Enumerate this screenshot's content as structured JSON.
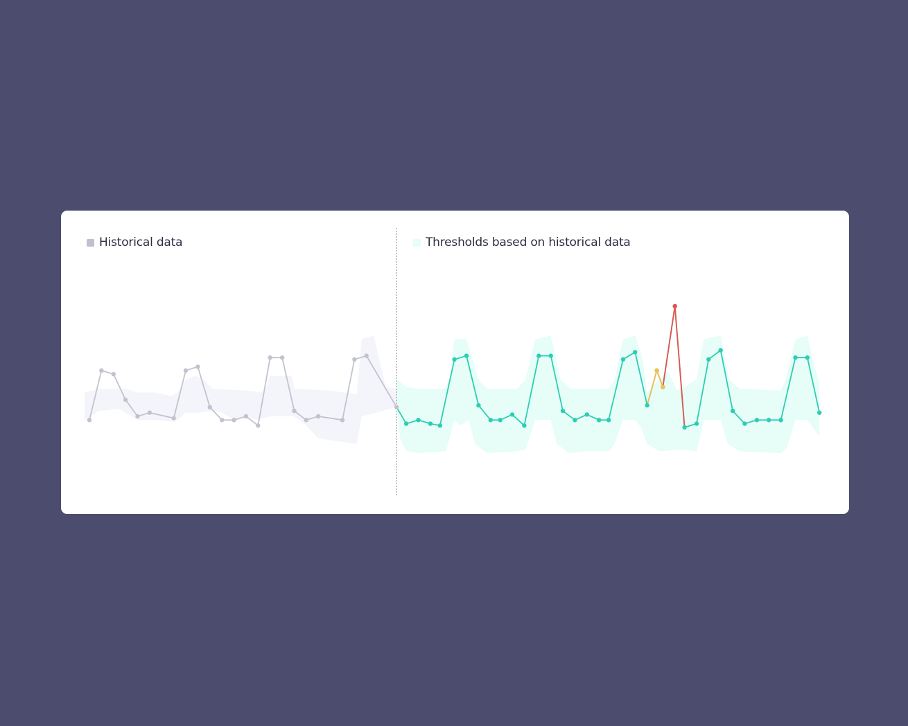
{
  "colors": {
    "background": "#4b4c6e",
    "card": "#ffffff",
    "historical_line": "#c2c3cf",
    "historical_band": "#f4f4fb",
    "current_line": "#2ecdb3",
    "current_band": "#e6fdf8",
    "warning": "#f5c04a",
    "alert": "#e4544c",
    "divider": "#8d8d8d",
    "legend_text": "#2b2d42"
  },
  "legend": {
    "historical_label": "Historical data",
    "thresholds_label": "Thresholds based on historical data"
  },
  "chart_data": {
    "type": "line",
    "title": "",
    "xlabel": "",
    "ylabel": "",
    "ylim": [
      0,
      100
    ],
    "grid": false,
    "legend_position": "top-left",
    "divider_x": 25.5,
    "series": [
      {
        "name": "Historical data",
        "role": "historical",
        "points": [
          [
            0,
            18
          ],
          [
            1,
            45
          ],
          [
            2,
            43
          ],
          [
            3,
            29
          ],
          [
            4,
            20
          ],
          [
            5,
            22
          ],
          [
            7,
            19
          ],
          [
            8,
            45
          ],
          [
            9,
            47
          ],
          [
            10,
            25
          ],
          [
            11,
            18
          ],
          [
            12,
            18
          ],
          [
            13,
            20
          ],
          [
            14,
            15
          ],
          [
            15,
            52
          ],
          [
            16,
            52
          ],
          [
            17,
            23
          ],
          [
            18,
            18
          ],
          [
            19,
            20
          ],
          [
            21,
            18
          ],
          [
            22,
            51
          ],
          [
            23,
            53
          ],
          [
            25.5,
            25
          ]
        ]
      },
      {
        "name": "Thresholds based on historical data",
        "role": "current",
        "points": [
          [
            25.5,
            25
          ],
          [
            26.3,
            16
          ],
          [
            27.3,
            18
          ],
          [
            28.3,
            16
          ],
          [
            29.1,
            15
          ],
          [
            30.3,
            51
          ],
          [
            31.3,
            53
          ],
          [
            32.3,
            26
          ],
          [
            33.3,
            18
          ],
          [
            34.1,
            18
          ],
          [
            35.1,
            21
          ],
          [
            36.1,
            15
          ],
          [
            37.3,
            53
          ],
          [
            38.3,
            53
          ],
          [
            39.3,
            23
          ],
          [
            40.3,
            18
          ],
          [
            41.3,
            21
          ],
          [
            42.3,
            18
          ],
          [
            43.1,
            18
          ],
          [
            44.3,
            51
          ],
          [
            45.3,
            55
          ],
          [
            46.3,
            26
          ],
          [
            47.1,
            45
          ],
          [
            47.6,
            36
          ],
          [
            48.6,
            80
          ],
          [
            49.4,
            14
          ],
          [
            50.4,
            16
          ],
          [
            51.4,
            51
          ],
          [
            52.4,
            56
          ],
          [
            53.4,
            23
          ],
          [
            54.4,
            16
          ],
          [
            55.4,
            18
          ],
          [
            56.4,
            18
          ],
          [
            57.4,
            18
          ],
          [
            58.6,
            52
          ],
          [
            59.6,
            52
          ],
          [
            60.6,
            22
          ]
        ]
      },
      {
        "name": "",
        "role": "warning",
        "points": [
          [
            46.3,
            26
          ],
          [
            47.1,
            45
          ],
          [
            47.6,
            36
          ]
        ]
      },
      {
        "name": "",
        "role": "alert",
        "points": [
          [
            47.6,
            36
          ],
          [
            48.6,
            80
          ],
          [
            49.4,
            14
          ]
        ]
      }
    ],
    "bands": [
      {
        "role": "historical",
        "upper": [
          [
            -0.4,
            33
          ],
          [
            0.8,
            35
          ],
          [
            3,
            35
          ],
          [
            4,
            33
          ],
          [
            5.5,
            33
          ],
          [
            6.8,
            31
          ],
          [
            7.3,
            33
          ],
          [
            8,
            40
          ],
          [
            8.8,
            42
          ],
          [
            9.5,
            40
          ],
          [
            10.2,
            35
          ],
          [
            13,
            34
          ],
          [
            14.5,
            33
          ],
          [
            15,
            42
          ],
          [
            16.8,
            42
          ],
          [
            17,
            35
          ],
          [
            20,
            34
          ],
          [
            22.2,
            32
          ],
          [
            22.6,
            62
          ],
          [
            23.6,
            64
          ],
          [
            24.6,
            36
          ],
          [
            25.5,
            35
          ]
        ],
        "lower": [
          [
            -0.4,
            18
          ],
          [
            0.8,
            23
          ],
          [
            2.5,
            24
          ],
          [
            3,
            22
          ],
          [
            4,
            18
          ],
          [
            5.5,
            18
          ],
          [
            7,
            17
          ],
          [
            7.3,
            18
          ],
          [
            8,
            22
          ],
          [
            9,
            22
          ],
          [
            10.2,
            23
          ],
          [
            11,
            22
          ],
          [
            12,
            18
          ],
          [
            13,
            20
          ],
          [
            14,
            18
          ],
          [
            15,
            20
          ],
          [
            17,
            20
          ],
          [
            18,
            15
          ],
          [
            19,
            8
          ],
          [
            20,
            7
          ],
          [
            22.2,
            5
          ],
          [
            22.6,
            20
          ],
          [
            25.5,
            25
          ]
        ]
      },
      {
        "role": "current",
        "upper": [
          [
            25.5,
            40
          ],
          [
            26.3,
            36
          ],
          [
            27.3,
            35
          ],
          [
            29.5,
            35
          ],
          [
            29.9,
            40
          ],
          [
            30.3,
            62
          ],
          [
            31.3,
            62
          ],
          [
            32.3,
            40
          ],
          [
            33,
            35
          ],
          [
            35.5,
            35
          ],
          [
            36.2,
            40
          ],
          [
            37,
            62
          ],
          [
            38.3,
            64
          ],
          [
            39.1,
            40
          ],
          [
            40,
            35
          ],
          [
            43.1,
            35
          ],
          [
            43.6,
            40
          ],
          [
            44.3,
            62
          ],
          [
            45.3,
            64
          ],
          [
            45.9,
            52
          ],
          [
            46.3,
            33
          ],
          [
            48,
            45
          ],
          [
            48.8,
            34
          ],
          [
            50.4,
            40
          ],
          [
            51,
            62
          ],
          [
            52.4,
            64
          ],
          [
            53.1,
            40
          ],
          [
            54,
            35
          ],
          [
            57.4,
            34
          ],
          [
            57.8,
            40
          ],
          [
            58.6,
            62
          ],
          [
            59.6,
            64
          ],
          [
            60,
            52
          ],
          [
            60.6,
            38
          ]
        ],
        "lower": [
          [
            25.5,
            25
          ],
          [
            25.8,
            8
          ],
          [
            26.3,
            1
          ],
          [
            27.3,
            0
          ],
          [
            29.3,
            1
          ],
          [
            29.6,
            1
          ],
          [
            30.3,
            18
          ],
          [
            30.8,
            15
          ],
          [
            31.5,
            18
          ],
          [
            32,
            5
          ],
          [
            33,
            0
          ],
          [
            35.5,
            1
          ],
          [
            36.2,
            2
          ],
          [
            37,
            18
          ],
          [
            38.3,
            18
          ],
          [
            38.8,
            5
          ],
          [
            39.8,
            0
          ],
          [
            41,
            1
          ],
          [
            43.1,
            1
          ],
          [
            43.6,
            5
          ],
          [
            44.3,
            18
          ],
          [
            45.3,
            18
          ],
          [
            45.8,
            14
          ],
          [
            46.3,
            5
          ],
          [
            47.3,
            1
          ],
          [
            49.1,
            2
          ],
          [
            50.4,
            1
          ],
          [
            51,
            18
          ],
          [
            52.4,
            18
          ],
          [
            53,
            5
          ],
          [
            54,
            1
          ],
          [
            57.4,
            0
          ],
          [
            57.9,
            3
          ],
          [
            58.6,
            18
          ],
          [
            59.6,
            18
          ],
          [
            60.6,
            9
          ]
        ]
      }
    ]
  }
}
